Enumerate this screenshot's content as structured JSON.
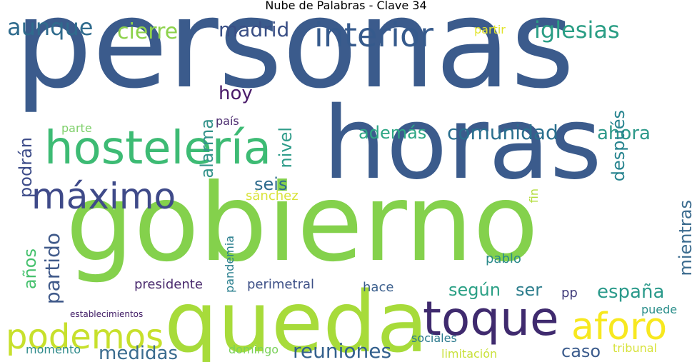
{
  "title": "Nube de Palabras - Clave 34",
  "words": [
    {
      "id": "personas",
      "text": "personas",
      "color": "#3b5b8c"
    },
    {
      "id": "gobierno",
      "text": "gobierno",
      "color": "#84d14c"
    },
    {
      "id": "horas",
      "text": "horas",
      "color": "#3b5b8c"
    },
    {
      "id": "queda",
      "text": "queda",
      "color": "#a7db3a"
    },
    {
      "id": "hosteleria",
      "text": "hostelería",
      "color": "#3dbb74"
    },
    {
      "id": "toque",
      "text": "toque",
      "color": "#3f2a6e"
    },
    {
      "id": "maximo",
      "text": "máximo",
      "color": "#3f4a89"
    },
    {
      "id": "podemos",
      "text": "podemos",
      "color": "#c7e02c"
    },
    {
      "id": "aforo",
      "text": "aforo",
      "color": "#f7e81f"
    },
    {
      "id": "interior",
      "text": "interior",
      "color": "#365a8c"
    },
    {
      "id": "iglesias",
      "text": "iglesias",
      "color": "#2b9e85"
    },
    {
      "id": "cierre",
      "text": "cierre",
      "color": "#8dd24b"
    },
    {
      "id": "madrid",
      "text": "madrid",
      "color": "#3a4f85"
    },
    {
      "id": "aunque",
      "text": "aunque",
      "color": "#2f6b8d"
    },
    {
      "id": "comunidad",
      "text": "comunidad",
      "color": "#2a6f8e"
    },
    {
      "id": "ademas",
      "text": "además",
      "color": "#2ea785"
    },
    {
      "id": "ahora",
      "text": "ahora",
      "color": "#2e998a"
    },
    {
      "id": "espana",
      "text": "españa",
      "color": "#2b9a8b"
    },
    {
      "id": "reuniones",
      "text": "reuniones",
      "color": "#33608d"
    },
    {
      "id": "medidas",
      "text": "medidas",
      "color": "#3b6c8f"
    },
    {
      "id": "partido",
      "text": "partido",
      "color": "#405a8a"
    },
    {
      "id": "anos",
      "text": "años",
      "color": "#45c16d"
    },
    {
      "id": "podran",
      "text": "podrán",
      "color": "#3d4c89"
    },
    {
      "id": "alarma",
      "text": "alarma",
      "color": "#34938b"
    },
    {
      "id": "nivel",
      "text": "nivel",
      "color": "#2f9c8a"
    },
    {
      "id": "despues",
      "text": "después",
      "color": "#26838e"
    },
    {
      "id": "mientras",
      "text": "mientras",
      "color": "#3b6b8e"
    },
    {
      "id": "hoy",
      "text": "hoy",
      "color": "#4a1b6a"
    },
    {
      "id": "seis",
      "text": "seis",
      "color": "#2f6c8e"
    },
    {
      "id": "segun",
      "text": "según",
      "color": "#2ba085"
    },
    {
      "id": "ser",
      "text": "ser",
      "color": "#2f7f8e"
    },
    {
      "id": "caso",
      "text": "caso",
      "color": "#3b5b8c"
    },
    {
      "id": "pais",
      "text": "país",
      "color": "#4a2a6e"
    },
    {
      "id": "parte",
      "text": "parte",
      "color": "#7ed06a"
    },
    {
      "id": "partir",
      "text": "partir",
      "color": "#e1e42a"
    },
    {
      "id": "pandemia",
      "text": "pandemia",
      "color": "#2a7f8e"
    },
    {
      "id": "sanchez",
      "text": "sánchez",
      "color": "#d9e33a"
    },
    {
      "id": "fin",
      "text": "fin",
      "color": "#b2dc3a"
    },
    {
      "id": "pablo",
      "text": "pablo",
      "color": "#2b8a8a"
    },
    {
      "id": "presidente",
      "text": "presidente",
      "color": "#4a2a6e"
    },
    {
      "id": "perimetral",
      "text": "perimetral",
      "color": "#3c4f86"
    },
    {
      "id": "hace",
      "text": "hace",
      "color": "#3a5e8c"
    },
    {
      "id": "pp",
      "text": "pp",
      "color": "#3f3a7a"
    },
    {
      "id": "puede",
      "text": "puede",
      "color": "#2a8e8a"
    },
    {
      "id": "establecimientos",
      "text": "establecimientos",
      "color": "#3f1a64"
    },
    {
      "id": "sociales",
      "text": "sociales",
      "color": "#2c7a8e"
    },
    {
      "id": "momento",
      "text": "momento",
      "color": "#2f8b8c"
    },
    {
      "id": "domingo",
      "text": "domingo",
      "color": "#7ad15a"
    },
    {
      "id": "limitacion",
      "text": "limitación",
      "color": "#c9e13a"
    },
    {
      "id": "tribunal",
      "text": "tribunal",
      "color": "#d7e23a"
    }
  ]
}
